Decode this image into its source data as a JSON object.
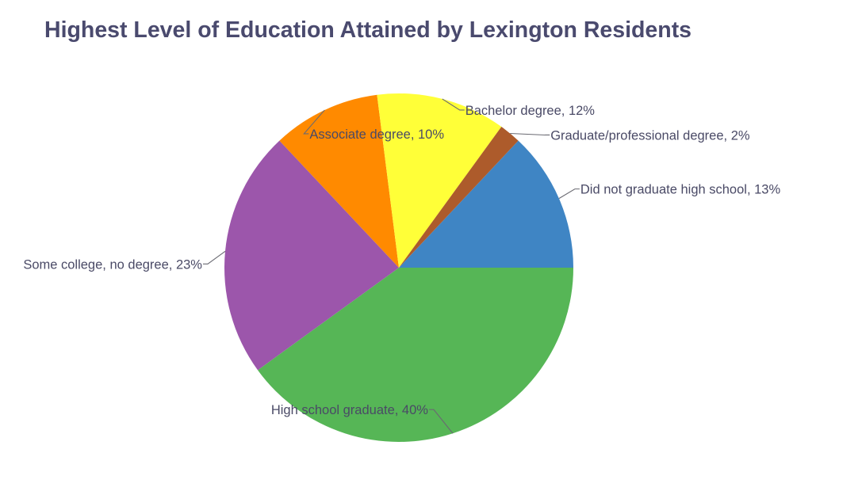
{
  "chart_data": {
    "type": "pie",
    "title": "Highest Level of Education Attained by Lexington Residents",
    "slices": [
      {
        "label": "Did not graduate high school",
        "value": 13,
        "color": "#3f85c4",
        "display": "Did not graduate high school, 13%"
      },
      {
        "label": "High school graduate",
        "value": 40,
        "color": "#56b656",
        "display": "High school graduate, 40%"
      },
      {
        "label": "Some college, no degree",
        "value": 23,
        "color": "#9c56ab",
        "display": "Some college, no degree, 23%"
      },
      {
        "label": "Associate degree",
        "value": 10,
        "color": "#ff8a00",
        "display": "Associate degree, 10%"
      },
      {
        "label": "Bachelor degree",
        "value": 12,
        "color": "#ffff38",
        "display": "Bachelor degree, 12%"
      },
      {
        "label": "Graduate/professional degree",
        "value": 2,
        "color": "#ad5b2b",
        "display": "Graduate/professional degree, 2%"
      }
    ]
  }
}
